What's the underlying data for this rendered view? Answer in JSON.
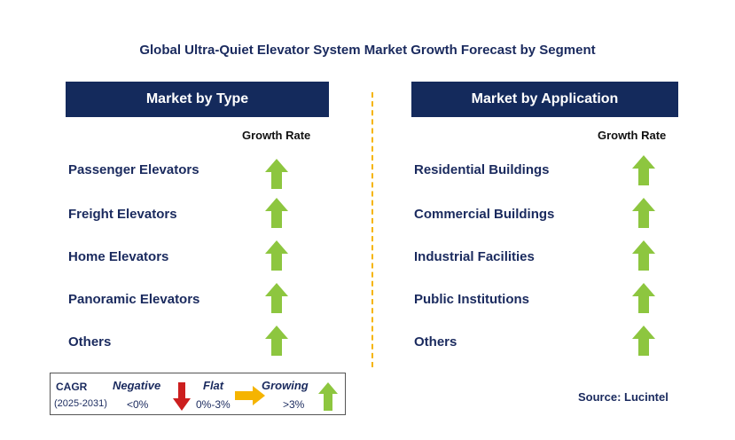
{
  "title": "Global Ultra-Quiet Elevator System Market Growth Forecast by Segment",
  "growth_rate_label": "Growth Rate",
  "colors": {
    "header_bg": "#142a5c",
    "text": "#1a2a5e",
    "growing": "#8dc63f",
    "negative": "#cc1f1f",
    "flat": "#f5b400"
  },
  "chart_data": {
    "type": "table",
    "title": "Global Ultra-Quiet Elevator System Market Growth Forecast by Segment",
    "panels": [
      {
        "header": "Market by Type",
        "column": "Growth Rate",
        "rows": [
          {
            "label": "Passenger Elevators",
            "trend": "growing"
          },
          {
            "label": "Freight Elevators",
            "trend": "growing"
          },
          {
            "label": "Home Elevators",
            "trend": "growing"
          },
          {
            "label": "Panoramic Elevators",
            "trend": "growing"
          },
          {
            "label": "Others",
            "trend": "growing"
          }
        ]
      },
      {
        "header": "Market by Application",
        "column": "Growth Rate",
        "rows": [
          {
            "label": "Residential Buildings",
            "trend": "growing"
          },
          {
            "label": "Commercial Buildings",
            "trend": "growing"
          },
          {
            "label": "Industrial Facilities",
            "trend": "growing"
          },
          {
            "label": "Public Institutions",
            "trend": "growing"
          },
          {
            "label": "Others",
            "trend": "growing"
          }
        ]
      }
    ]
  },
  "legend": {
    "cagr": "CAGR",
    "period": "(2025-2031)",
    "negative_label": "Negative",
    "negative_range": "<0%",
    "flat_label": "Flat",
    "flat_range": "0%-3%",
    "growing_label": "Growing",
    "growing_range": ">3%"
  },
  "source": "Source: Lucintel"
}
